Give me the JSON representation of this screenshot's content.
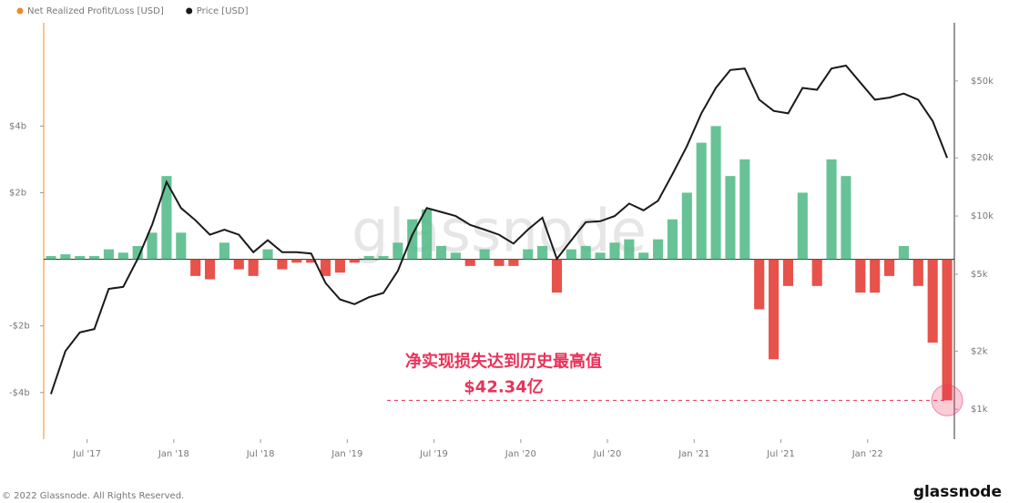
{
  "chart_data": {
    "type": "bar-line",
    "watermark": "glassnode",
    "footer": "© 2022 Glassnode. All Rights Reserved.",
    "logo": "glassnode",
    "legend_position": "top-left",
    "x": [
      "2017-04",
      "2017-05",
      "2017-06",
      "2017-07",
      "2017-08",
      "2017-09",
      "2017-10",
      "2017-11",
      "2017-12",
      "2018-01",
      "2018-02",
      "2018-03",
      "2018-04",
      "2018-05",
      "2018-06",
      "2018-07",
      "2018-08",
      "2018-09",
      "2018-10",
      "2018-11",
      "2018-12",
      "2019-01",
      "2019-02",
      "2019-03",
      "2019-04",
      "2019-05",
      "2019-06",
      "2019-07",
      "2019-08",
      "2019-09",
      "2019-10",
      "2019-11",
      "2019-12",
      "2020-01",
      "2020-02",
      "2020-03",
      "2020-04",
      "2020-05",
      "2020-06",
      "2020-07",
      "2020-08",
      "2020-09",
      "2020-10",
      "2020-11",
      "2020-12",
      "2021-01",
      "2021-02",
      "2021-03",
      "2021-04",
      "2021-05",
      "2021-06",
      "2021-07",
      "2021-08",
      "2021-09",
      "2021-10",
      "2021-11",
      "2021-12",
      "2022-01",
      "2022-02",
      "2022-03",
      "2022-04",
      "2022-05",
      "2022-06"
    ],
    "xlim": [
      "2017-04",
      "2022-07"
    ],
    "xticks": [
      {
        "value": "2017-07",
        "label": "Jul '17"
      },
      {
        "value": "2018-01",
        "label": "Jan '18"
      },
      {
        "value": "2018-07",
        "label": "Jul '18"
      },
      {
        "value": "2019-01",
        "label": "Jan '19"
      },
      {
        "value": "2019-07",
        "label": "Jul '19"
      },
      {
        "value": "2020-01",
        "label": "Jan '20"
      },
      {
        "value": "2020-07",
        "label": "Jul '20"
      },
      {
        "value": "2021-01",
        "label": "Jan '21"
      },
      {
        "value": "2021-07",
        "label": "Jul '21"
      },
      {
        "value": "2022-01",
        "label": "Jan '22"
      }
    ],
    "ylim": [
      -5.4,
      7.1
    ],
    "yticks": [
      {
        "value": -4,
        "label": "-$4b"
      },
      {
        "value": -2,
        "label": "-$2b"
      },
      {
        "value": 2,
        "label": "$2b"
      },
      {
        "value": 4,
        "label": "$4b"
      }
    ],
    "y2lim": [
      700,
      100000
    ],
    "y2log": true,
    "y2ticks": [
      {
        "value": 1000,
        "label": "$1k"
      },
      {
        "value": 2000,
        "label": "$2k"
      },
      {
        "value": 5000,
        "label": "$5k"
      },
      {
        "value": 10000,
        "label": "$10k"
      },
      {
        "value": 20000,
        "label": "$20k"
      },
      {
        "value": 50000,
        "label": "$50k"
      }
    ],
    "series": [
      {
        "name": "Net Realized Profit/Loss [USD]",
        "type": "bar",
        "color": "#f08a24",
        "positive_color": "#4cb884",
        "negative_color": "#e3342a",
        "values": [
          0.1,
          0.15,
          0.1,
          0.1,
          0.3,
          0.2,
          0.4,
          0.8,
          2.5,
          0.8,
          -0.5,
          -0.6,
          0.5,
          -0.3,
          -0.5,
          0.3,
          -0.3,
          -0.1,
          -0.1,
          -0.5,
          -0.4,
          -0.1,
          0.1,
          0.1,
          0.5,
          1.2,
          1.5,
          0.4,
          0.2,
          -0.2,
          0.3,
          -0.2,
          -0.2,
          0.3,
          0.4,
          -1.0,
          0.3,
          0.4,
          0.2,
          0.5,
          0.6,
          0.2,
          0.6,
          1.2,
          2.0,
          3.5,
          4.0,
          2.5,
          3.0,
          -1.5,
          -3.0,
          -0.8,
          2.0,
          -0.8,
          3.0,
          2.5,
          -1.0,
          -1.0,
          -0.5,
          0.4,
          -0.8,
          -2.5,
          -4.234
        ]
      },
      {
        "name": "Price [USD]",
        "type": "line",
        "axis": "y2",
        "color": "#1a1a1a",
        "values": [
          1200,
          2000,
          2500,
          2600,
          4200,
          4300,
          6000,
          9000,
          15000,
          11000,
          9500,
          8000,
          8500,
          8000,
          6500,
          7500,
          6500,
          6500,
          6400,
          4500,
          3700,
          3500,
          3800,
          4000,
          5200,
          8000,
          11000,
          10500,
          10000,
          9000,
          8500,
          8000,
          7200,
          8500,
          9800,
          6000,
          7500,
          9300,
          9400,
          10000,
          11600,
          10700,
          12000,
          16500,
          23000,
          34000,
          46000,
          57000,
          58000,
          40000,
          35000,
          34000,
          46000,
          45000,
          58000,
          60000,
          49000,
          40000,
          41000,
          43000,
          40000,
          31000,
          20000
        ]
      }
    ],
    "annotations": [
      {
        "text": "净实现损失达到历史最高值",
        "label": "$42.34亿",
        "color": "#e8335a"
      }
    ]
  }
}
